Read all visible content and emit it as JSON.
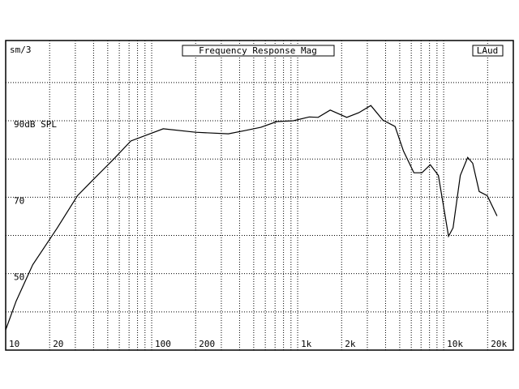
{
  "chart_data": {
    "type": "line",
    "ylabel": "sm/3",
    "title": "Frequency Response Mag",
    "channel": "LAud",
    "x": [
      10,
      11.8,
      15.3,
      22.5,
      31,
      40,
      55,
      72,
      120,
      200,
      335,
      430,
      560,
      720,
      935,
      1200,
      1380,
      1670,
      2170,
      2620,
      3170,
      3830,
      4650,
      5300,
      6250,
      7100,
      8100,
      9200,
      10800,
      11600,
      13000,
      14600,
      15800,
      17500,
      19900,
      23200
    ],
    "series": [
      {
        "color": "#000000",
        "values": [
          35.3,
          42.8,
          52.3,
          61.9,
          70.4,
          74.7,
          80,
          84.7,
          87.9,
          87,
          86.6,
          87.4,
          88.3,
          89.8,
          90,
          91,
          90.9,
          92.8,
          90.9,
          92.1,
          94,
          90.2,
          88.5,
          82.1,
          76.4,
          76.4,
          78.5,
          75.7,
          59.8,
          62,
          75.7,
          80.4,
          78.9,
          71.5,
          70.4,
          65.1
        ]
      }
    ],
    "xlog": true,
    "xlim": [
      10,
      30000
    ],
    "ylim": [
      30,
      111
    ],
    "xticks": [
      10,
      20,
      100,
      200,
      {
        "value": 1000,
        "label": "1k"
      },
      {
        "value": 2000,
        "label": "2k"
      },
      {
        "value": 10000,
        "label": "10k"
      },
      {
        "value": 20000,
        "label": "20k"
      }
    ],
    "xgrid": [
      20,
      30,
      40,
      50,
      60,
      70,
      80,
      90,
      100,
      200,
      300,
      400,
      500,
      600,
      700,
      800,
      900,
      1000,
      2000,
      3000,
      4000,
      5000,
      6000,
      7000,
      8000,
      9000,
      10000,
      20000
    ],
    "yticks": [
      {
        "value": 90,
        "label": "90dB SPL"
      },
      {
        "value": 70,
        "label": "70"
      },
      {
        "value": 50,
        "label": "50"
      }
    ],
    "ygrid": [
      40,
      50,
      60,
      70,
      80,
      90,
      100
    ],
    "grid": true
  }
}
